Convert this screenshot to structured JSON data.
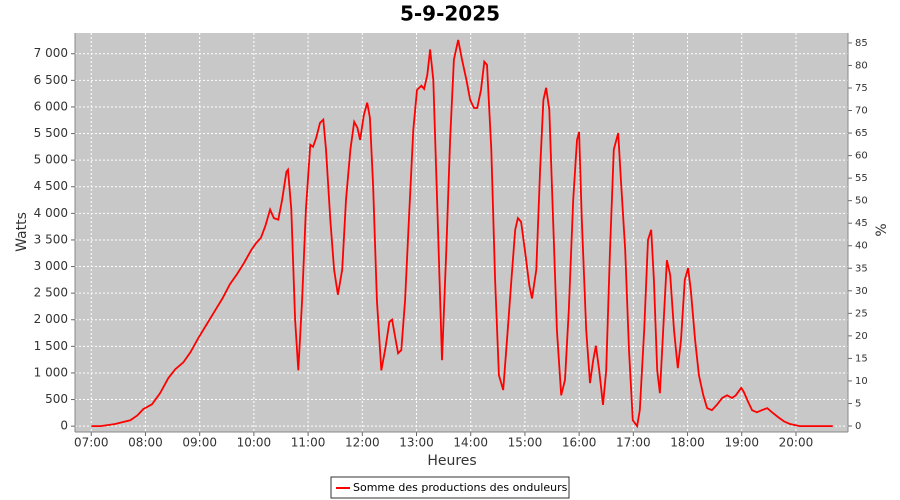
{
  "chart_data": {
    "type": "line",
    "title": "5-9-2025",
    "x_label": "Heures",
    "y_label": "Watts",
    "y2_label": "%",
    "x": [
      7.0,
      7.17,
      7.44,
      7.72,
      7.85,
      7.96,
      8.12,
      8.27,
      8.42,
      8.55,
      8.7,
      8.83,
      8.97,
      9.12,
      9.27,
      9.42,
      9.56,
      9.69,
      9.82,
      9.95,
      10.04,
      10.13,
      10.21,
      10.3,
      10.37,
      10.45,
      10.52,
      10.6,
      10.63,
      10.69,
      10.76,
      10.82,
      10.89,
      10.96,
      11.04,
      11.09,
      11.15,
      11.22,
      11.28,
      11.33,
      11.41,
      11.48,
      11.55,
      11.63,
      11.7,
      11.78,
      11.85,
      11.91,
      11.96,
      12.03,
      12.09,
      12.14,
      12.2,
      12.27,
      12.35,
      12.42,
      12.5,
      12.55,
      12.61,
      12.66,
      12.72,
      12.79,
      12.86,
      12.94,
      13.01,
      13.09,
      13.14,
      13.2,
      13.25,
      13.31,
      13.38,
      13.47,
      13.55,
      13.62,
      13.69,
      13.77,
      13.84,
      13.92,
      13.99,
      14.06,
      14.12,
      14.19,
      14.25,
      14.3,
      14.38,
      14.45,
      14.52,
      14.6,
      14.67,
      14.75,
      14.82,
      14.87,
      14.93,
      15.0,
      15.08,
      15.13,
      15.21,
      15.28,
      15.34,
      15.39,
      15.45,
      15.52,
      15.59,
      15.67,
      15.74,
      15.81,
      15.89,
      15.96,
      16.0,
      16.05,
      16.13,
      16.2,
      16.26,
      16.31,
      16.37,
      16.44,
      16.5,
      16.57,
      16.64,
      16.72,
      16.77,
      16.85,
      16.92,
      16.99,
      17.07,
      17.12,
      17.2,
      17.27,
      17.33,
      17.38,
      17.44,
      17.49,
      17.55,
      17.62,
      17.68,
      17.75,
      17.82,
      17.88,
      17.95,
      18.01,
      18.06,
      18.14,
      18.21,
      18.29,
      18.36,
      18.45,
      18.54,
      18.64,
      18.73,
      18.82,
      18.89,
      18.99,
      19.04,
      19.12,
      19.19,
      19.28,
      19.37,
      19.47,
      19.56,
      19.67,
      19.78,
      19.89,
      20.07,
      20.35,
      20.68
    ],
    "series": [
      {
        "name": "Somme des productions des onduleurs",
        "color": "#ff0000",
        "values": [
          0,
          0,
          40,
          110,
          200,
          320,
          410,
          620,
          900,
          1070,
          1200,
          1390,
          1650,
          1900,
          2150,
          2400,
          2670,
          2860,
          3070,
          3310,
          3440,
          3540,
          3760,
          4070,
          3910,
          3880,
          4250,
          4780,
          4820,
          4070,
          2000,
          1050,
          2370,
          4070,
          5290,
          5250,
          5420,
          5700,
          5760,
          5200,
          3880,
          2940,
          2470,
          2940,
          4250,
          5200,
          5720,
          5610,
          5380,
          5850,
          6080,
          5800,
          4530,
          2370,
          1050,
          1430,
          1960,
          2000,
          1650,
          1370,
          1430,
          2370,
          3880,
          5570,
          6320,
          6400,
          6340,
          6600,
          7080,
          6510,
          4250,
          1240,
          3310,
          5380,
          6890,
          7260,
          6890,
          6510,
          6130,
          5980,
          5980,
          6320,
          6850,
          6790,
          5200,
          2750,
          960,
          680,
          1620,
          2750,
          3690,
          3910,
          3840,
          3310,
          2650,
          2400,
          2940,
          4820,
          6130,
          6360,
          5950,
          3880,
          1810,
          580,
          870,
          2180,
          4250,
          5380,
          5530,
          3880,
          1810,
          810,
          1240,
          1510,
          1050,
          400,
          1050,
          3310,
          5200,
          5510,
          4630,
          3310,
          1430,
          110,
          0,
          300,
          1810,
          3500,
          3690,
          2750,
          1050,
          620,
          1810,
          3120,
          2840,
          1810,
          1090,
          1620,
          2750,
          2970,
          2560,
          1620,
          960,
          580,
          340,
          300,
          400,
          530,
          580,
          530,
          580,
          720,
          640,
          450,
          300,
          260,
          300,
          340,
          260,
          170,
          90,
          40,
          0,
          0,
          0
        ]
      }
    ],
    "xlim": [
      6.7,
      20.96
    ],
    "xticks": [
      {
        "value": 7,
        "label": "07:00"
      },
      {
        "value": 8,
        "label": "08:00"
      },
      {
        "value": 9,
        "label": "09:00"
      },
      {
        "value": 10,
        "label": "10:00"
      },
      {
        "value": 11,
        "label": "11:00"
      },
      {
        "value": 12,
        "label": "12:00"
      },
      {
        "value": 13,
        "label": "13:00"
      },
      {
        "value": 14,
        "label": "14:00"
      },
      {
        "value": 15,
        "label": "15:00"
      },
      {
        "value": 16,
        "label": "16:00"
      },
      {
        "value": 17,
        "label": "17:00"
      },
      {
        "value": 18,
        "label": "18:00"
      },
      {
        "value": 19,
        "label": "19:00"
      },
      {
        "value": 20,
        "label": "20:00"
      }
    ],
    "ylim": [
      -110,
      7390
    ],
    "yticks": [
      0,
      500,
      {
        "value": 1000,
        "label": "1 000"
      },
      {
        "value": 1500,
        "label": "1 500"
      },
      {
        "value": 2000,
        "label": "2 000"
      },
      {
        "value": 2500,
        "label": "2 500"
      },
      {
        "value": 3000,
        "label": "3 000"
      },
      {
        "value": 3500,
        "label": "3 500"
      },
      {
        "value": 4000,
        "label": "4 000"
      },
      {
        "value": 4500,
        "label": "4 500"
      },
      {
        "value": 5000,
        "label": "5 000"
      },
      {
        "value": 5500,
        "label": "5 500"
      },
      {
        "value": 6000,
        "label": "6 000"
      },
      {
        "value": 6500,
        "label": "6 500"
      },
      {
        "value": 7000,
        "label": "7 000"
      }
    ],
    "y2lim": [
      -1.33,
      87.2
    ],
    "y2ticks": [
      0,
      5,
      10,
      15,
      20,
      25,
      30,
      35,
      40,
      45,
      50,
      55,
      60,
      65,
      70,
      75,
      80,
      85
    ],
    "grid": true
  }
}
